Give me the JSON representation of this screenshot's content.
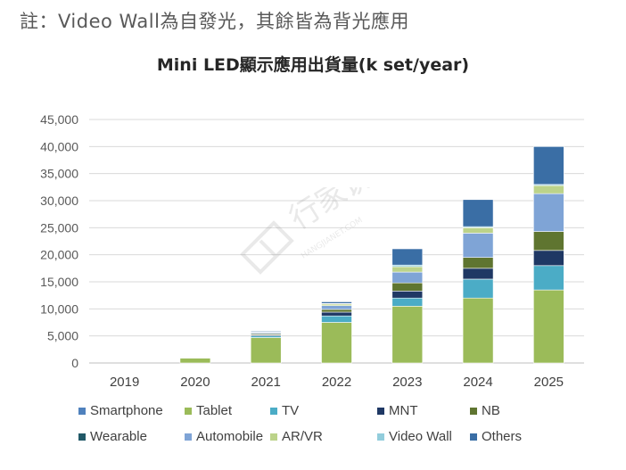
{
  "note": "註：Video Wall為自發光，其餘皆為背光應用",
  "chart_data": {
    "type": "bar",
    "stacked": true,
    "title": "Mini LED顯示應用出貨量(k set/year)",
    "xlabel": "",
    "ylabel": "",
    "ylim": [
      0,
      45000
    ],
    "yticks": [
      0,
      5000,
      10000,
      15000,
      20000,
      25000,
      30000,
      35000,
      40000,
      45000
    ],
    "ytick_labels": [
      "0",
      "5,000",
      "10,000",
      "15,000",
      "20,000",
      "25,000",
      "30,000",
      "35,000",
      "40,000",
      "45,000"
    ],
    "grid": true,
    "legend_position": "bottom",
    "categories": [
      "2019",
      "2020",
      "2021",
      "2022",
      "2023",
      "2024",
      "2025"
    ],
    "series": [
      {
        "name": "Smartphone",
        "color": "#4f81bd",
        "values": [
          0,
          0,
          0,
          0,
          0,
          0,
          0
        ]
      },
      {
        "name": "Tablet",
        "color": "#9bbb59",
        "values": [
          0,
          900,
          4700,
          7500,
          10500,
          12000,
          13500
        ]
      },
      {
        "name": "TV",
        "color": "#4bacc6",
        "values": [
          0,
          0,
          300,
          1200,
          1500,
          3500,
          4500
        ]
      },
      {
        "name": "MNT",
        "color": "#1f3864",
        "values": [
          0,
          0,
          200,
          700,
          1300,
          2000,
          2800
        ]
      },
      {
        "name": "NB",
        "color": "#5f7530",
        "values": [
          0,
          0,
          200,
          500,
          1500,
          2000,
          3500
        ]
      },
      {
        "name": "Wearable",
        "color": "#215967",
        "values": [
          0,
          0,
          0,
          0,
          0,
          0,
          0
        ]
      },
      {
        "name": "Automobile",
        "color": "#7fa4d6",
        "values": [
          0,
          0,
          200,
          700,
          2000,
          4500,
          7000
        ]
      },
      {
        "name": "AR/VR",
        "color": "#bcd38a",
        "values": [
          0,
          0,
          100,
          300,
          1000,
          1000,
          1500
        ]
      },
      {
        "name": "Video Wall",
        "color": "#92cddc",
        "values": [
          0,
          0,
          50,
          100,
          300,
          200,
          200
        ]
      },
      {
        "name": "Others",
        "color": "#3a6ea5",
        "values": [
          0,
          100,
          150,
          300,
          3000,
          5000,
          7000
        ]
      }
    ]
  },
  "watermark": {
    "text": "行家说",
    "subtext": "HANGJIANET.COM"
  }
}
